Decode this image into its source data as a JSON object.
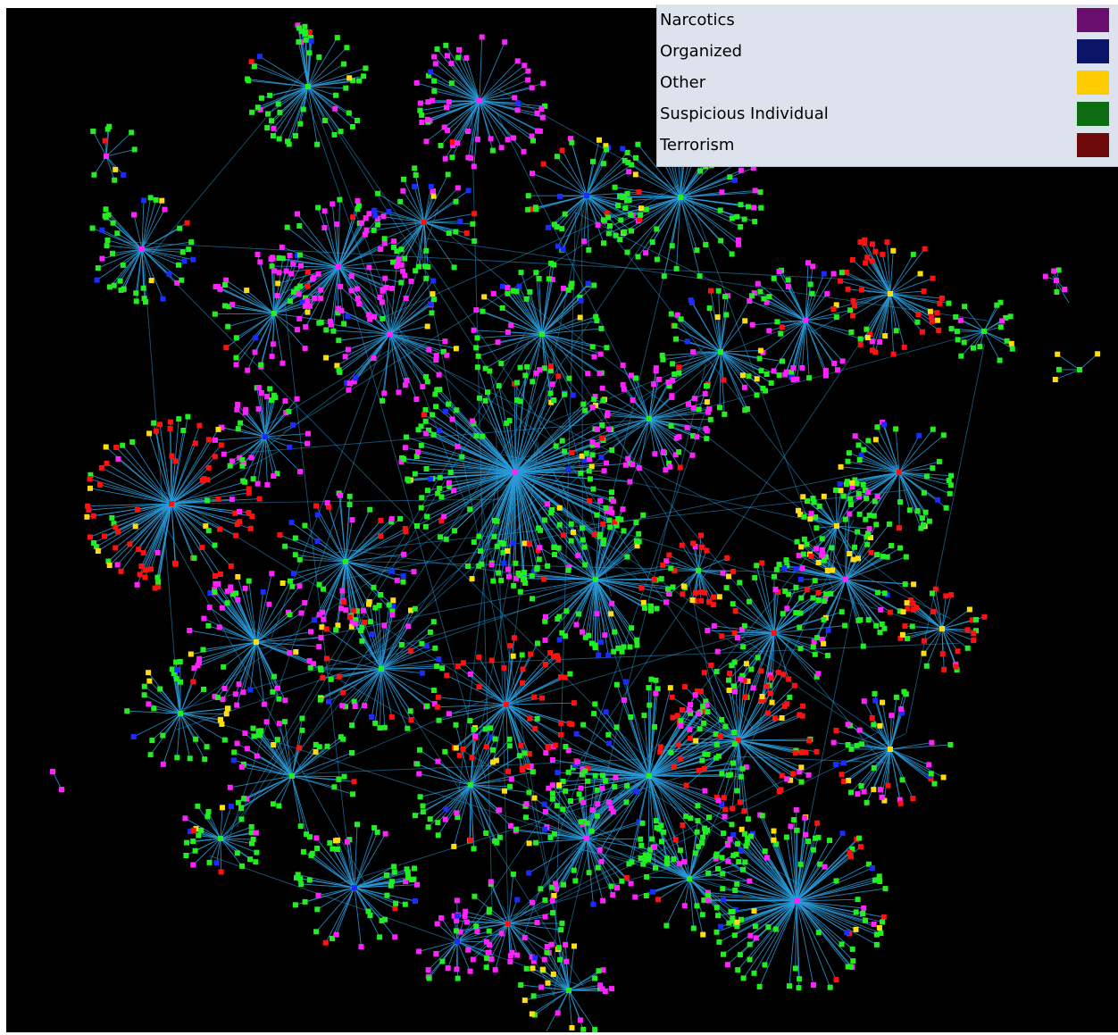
{
  "legend": {
    "items": [
      {
        "label": "Narcotics",
        "color": "#6b0f6f"
      },
      {
        "label": "Organized",
        "color": "#0b1466"
      },
      {
        "label": "Other",
        "color": "#ffcc00"
      },
      {
        "label": "Suspicious Individual",
        "color": "#0d6b12"
      },
      {
        "label": "Terrorism",
        "color": "#6e0a0a"
      }
    ]
  },
  "graph": {
    "background": "#000000",
    "edge_color": "#2a9ad8",
    "node_colors": {
      "narcotics": "#ff22ff",
      "organized": "#1a2cff",
      "other": "#ffdd11",
      "suspicious": "#22ee22",
      "terrorism": "#ff1111"
    }
  }
}
